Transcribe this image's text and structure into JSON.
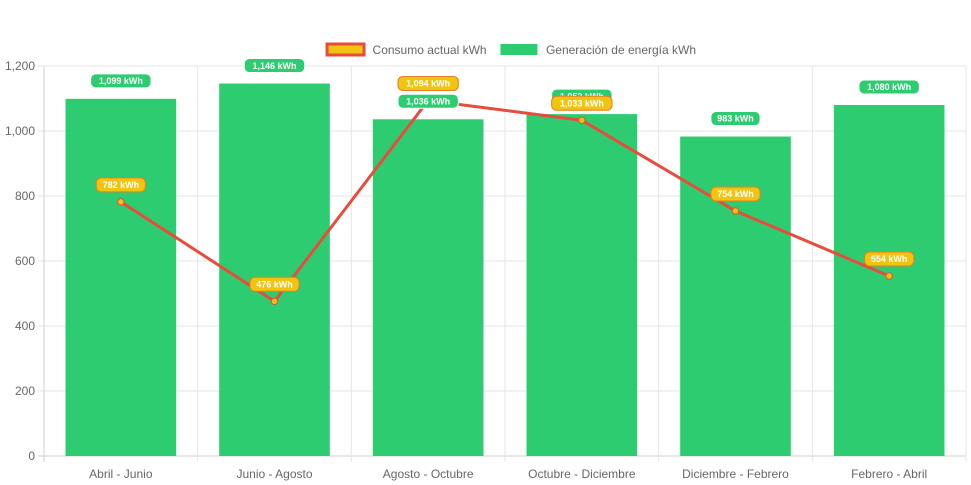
{
  "chart_data": {
    "type": "bar",
    "categories": [
      "Abril - Junio",
      "Junio - Agosto",
      "Agosto - Octubre",
      "Octubre - Diciembre",
      "Diciembre - Febrero",
      "Febrero - Abril"
    ],
    "series": [
      {
        "name": "Consumo actual kWh",
        "type": "line",
        "values": [
          782,
          476,
          1094,
          1033,
          754,
          554
        ],
        "labels": [
          "782 kWh",
          "476 kWh",
          "1,094 kWh",
          "1,033 kWh",
          "754 kWh",
          "554 kWh"
        ],
        "color": "#e74c3c",
        "fill": "#f1c40f"
      },
      {
        "name": "Generación de energía kWh",
        "type": "bar",
        "values": [
          1099,
          1146,
          1036,
          1052,
          983,
          1080
        ],
        "labels": [
          "1,099 kWh",
          "1,146 kWh",
          "1,036 kWh",
          "1,052 kWh",
          "983 kWh",
          "1,080 kWh"
        ],
        "color": "#2ecc71"
      }
    ],
    "y_ticks": [
      "0",
      "200",
      "400",
      "600",
      "800",
      "1,000",
      "1,200"
    ],
    "ylim": [
      0,
      1200
    ],
    "grid": true,
    "legend_position": "top"
  }
}
